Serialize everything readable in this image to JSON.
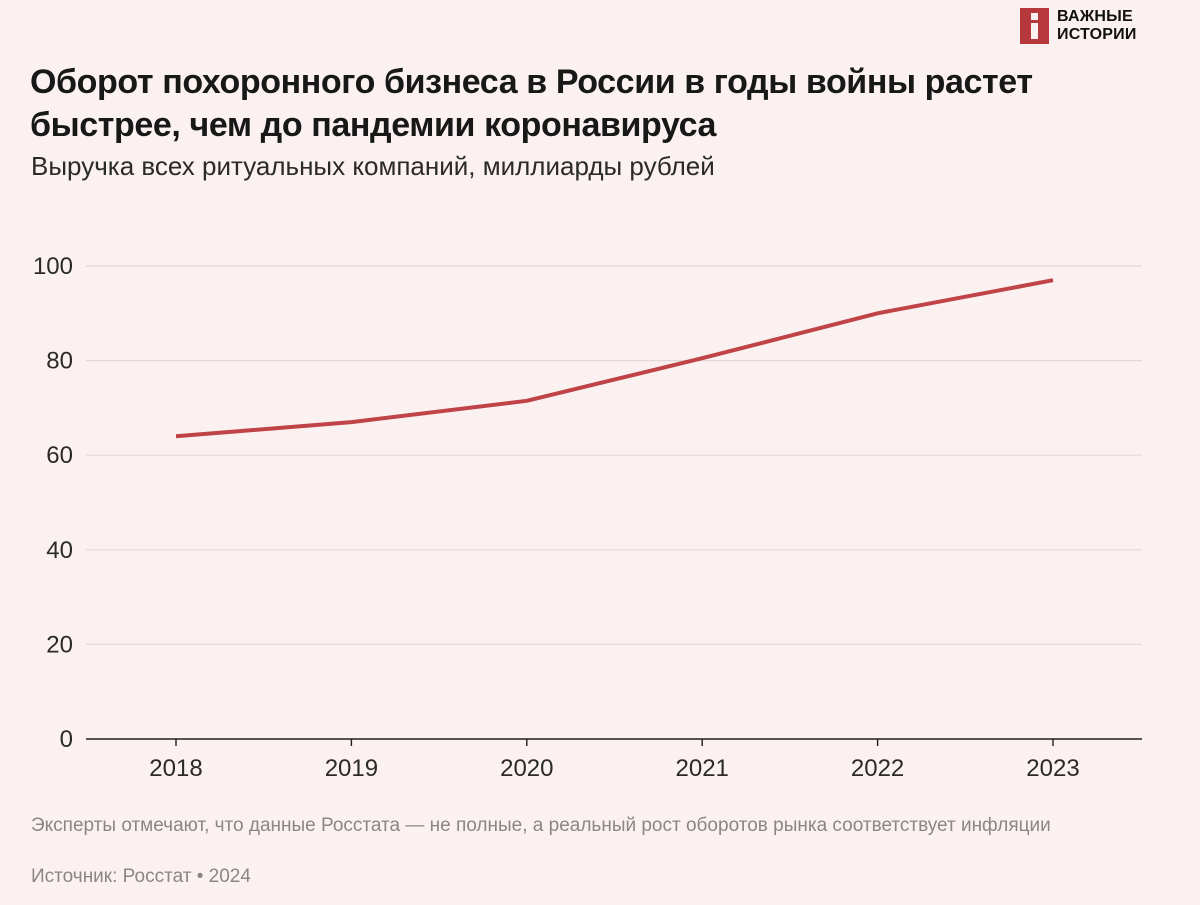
{
  "logo": {
    "line1": "ВАЖНЫЕ",
    "line2": "ИСТОРИИ",
    "brand_color": "#b6383c"
  },
  "header": {
    "title": "Оборот похоронного бизнеса в России в годы войны растет быстрее, чем до пандемии коронавируса",
    "subtitle": "Выручка всех ритуальных компаний, миллиарды рублей"
  },
  "chart_data": {
    "type": "line",
    "title": "Оборот похоронного бизнеса в России в годы войны растет быстрее, чем до пандемии коронавируса",
    "subtitle": "Выручка всех ритуальных компаний, миллиарды рублей",
    "xlabel": "",
    "ylabel": "",
    "categories": [
      "2018",
      "2019",
      "2020",
      "2021",
      "2022",
      "2023"
    ],
    "series": [
      {
        "name": "Выручка всех ритуальных компаний",
        "values": [
          64,
          67,
          71.5,
          80.5,
          90,
          97
        ],
        "color": "#bf4347"
      }
    ],
    "ylim": [
      0,
      100
    ],
    "yticks": [
      0,
      20,
      40,
      60,
      80,
      100
    ],
    "grid": true,
    "legend": "none"
  },
  "footer": {
    "note": "Эксперты отмечают, что данные Росстата — не полные, а реальный рост оборотов рынка соответствует инфляции",
    "source": "Источник: Росстат • 2024"
  }
}
